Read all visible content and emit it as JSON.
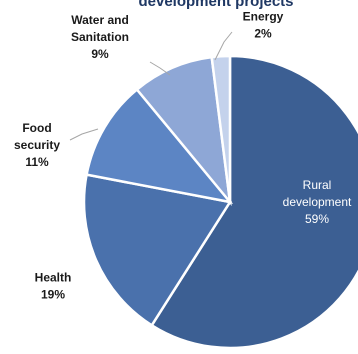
{
  "chart_data": {
    "type": "pie",
    "title": "development projects",
    "categories": [
      "Rural development",
      "Health",
      "Food security",
      "Water and Sanitation",
      "Energy"
    ],
    "values": [
      59,
      19,
      11,
      9,
      2
    ],
    "labels": [
      {
        "lines": [
          "Rural",
          "development",
          "59%"
        ]
      },
      {
        "lines": [
          "Health",
          "19%"
        ]
      },
      {
        "lines": [
          "Food",
          "security",
          "11%"
        ]
      },
      {
        "lines": [
          "Water and",
          "Sanitation",
          "9%"
        ]
      },
      {
        "lines": [
          "Energy",
          "2%"
        ]
      }
    ],
    "colors": [
      "#3c5f93",
      "#4a71ac",
      "#5c85c4",
      "#8ea7d6",
      "#c4d2ec"
    ],
    "start_angle_deg": 0,
    "direction": "clockwise"
  }
}
